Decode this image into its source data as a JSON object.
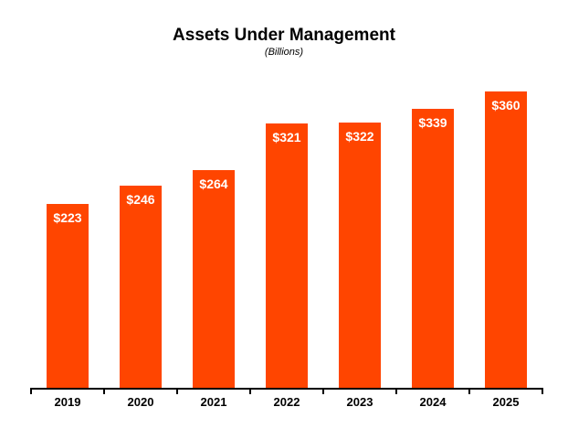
{
  "chart_data": {
    "type": "bar",
    "title": "Assets Under Management",
    "subtitle": "(Billions)",
    "categories": [
      "2019",
      "2020",
      "2021",
      "2022",
      "2023",
      "2024",
      "2025"
    ],
    "values": [
      223,
      246,
      264,
      321,
      322,
      339,
      360
    ],
    "value_labels": [
      "$223",
      "$246",
      "$264",
      "$321",
      "$322",
      "$339",
      "$360"
    ],
    "xlabel": "",
    "ylabel": "",
    "ylim": [
      0,
      360
    ],
    "grid": false,
    "legend": false,
    "colors": {
      "bar": "#FF4500",
      "bar_label": "#FFFFFF",
      "title": "#000000",
      "axis": "#000000",
      "background": "#FFFFFF"
    }
  }
}
